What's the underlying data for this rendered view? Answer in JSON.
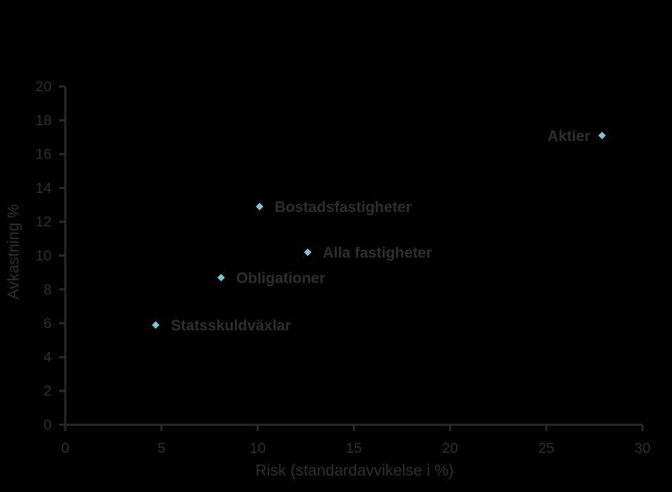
{
  "chart_data": {
    "type": "scatter",
    "xlabel": "Risk (standardavvikelse i %)",
    "ylabel": "Avkastning %",
    "xlim": [
      0,
      30
    ],
    "ylim": [
      0,
      20
    ],
    "xticks": [
      0,
      5,
      10,
      15,
      20,
      25,
      30
    ],
    "yticks": [
      0,
      2,
      4,
      6,
      8,
      10,
      12,
      14,
      16,
      18,
      20
    ],
    "grid": false,
    "colors": {
      "marker": "#7fc4d0",
      "axis": "#2a2a2a",
      "text": "#2f2f2f",
      "background": "#000000"
    },
    "points": [
      {
        "label": "Statsskuldväxlar",
        "x": 4.7,
        "y": 5.9,
        "label_side": "right"
      },
      {
        "label": "Obligationer",
        "x": 8.1,
        "y": 8.7,
        "label_side": "right"
      },
      {
        "label": "Bostadsfastigheter",
        "x": 10.1,
        "y": 12.9,
        "label_side": "right"
      },
      {
        "label": "Alla fastigheter",
        "x": 12.6,
        "y": 10.2,
        "label_side": "right"
      },
      {
        "label": "Aktier",
        "x": 27.9,
        "y": 17.1,
        "label_side": "left"
      }
    ]
  }
}
